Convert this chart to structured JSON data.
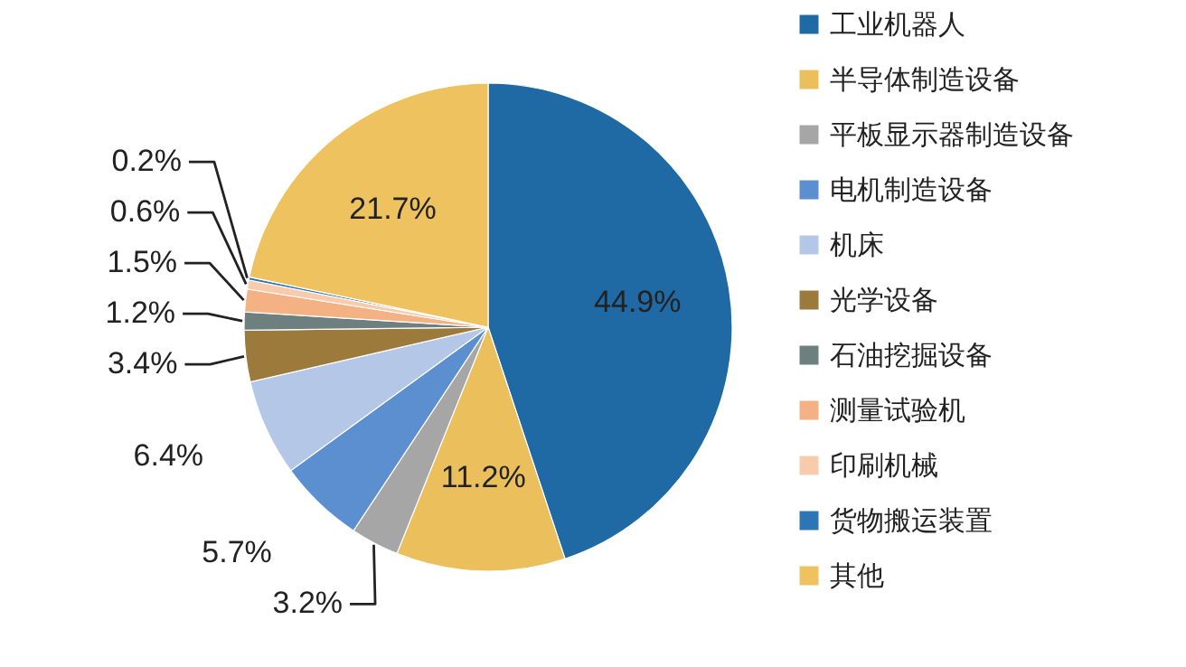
{
  "chart_data": {
    "type": "pie",
    "categories": [
      "工业机器人",
      "半导体制造设备",
      "平板显示器制造设备",
      "电机制造设备",
      "机床",
      "光学设备",
      "石油挖掘设备",
      "测量试验机",
      "印刷机械",
      "货物搬运装置",
      "其他"
    ],
    "values": [
      44.9,
      11.2,
      3.2,
      5.7,
      6.4,
      3.4,
      1.2,
      1.5,
      0.6,
      0.2,
      21.7
    ],
    "colors": [
      "#1f6aa5",
      "#eabf5c",
      "#a6a6a6",
      "#5b8fd0",
      "#b4c7e7",
      "#9c7a3c",
      "#6e7f80",
      "#f4b183",
      "#f8cbad",
      "#2e75b6",
      "#eec25e"
    ],
    "value_labels": [
      "44.9%",
      "11.2%",
      "3.2%",
      "5.7%",
      "6.4%",
      "3.4%",
      "1.2%",
      "1.5%",
      "0.6%",
      "0.2%",
      "21.7%"
    ],
    "legend": "right"
  }
}
